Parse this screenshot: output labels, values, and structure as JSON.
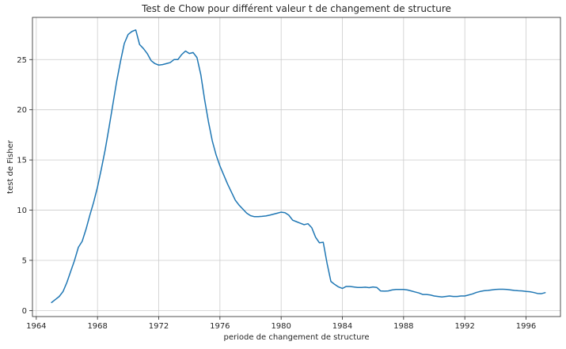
{
  "chart_data": {
    "type": "line",
    "title": "Test de Chow pour différent valeur t de changement de structure",
    "xlabel": "periode de changement de structure",
    "ylabel": "test de Fisher",
    "xlim": [
      1963.75,
      1998.25
    ],
    "ylim": [
      -0.6,
      29.2
    ],
    "grid": true,
    "x_ticks": [
      {
        "value": 1964,
        "label": "1964"
      },
      {
        "value": 1968,
        "label": "1968"
      },
      {
        "value": 1972,
        "label": "1972"
      },
      {
        "value": 1976,
        "label": "1976"
      },
      {
        "value": 1980,
        "label": "1980"
      },
      {
        "value": 1984,
        "label": "1984"
      },
      {
        "value": 1988,
        "label": "1988"
      },
      {
        "value": 1992,
        "label": "1992"
      },
      {
        "value": 1996,
        "label": "1996"
      }
    ],
    "y_ticks": [
      {
        "value": 0,
        "label": "0"
      },
      {
        "value": 5,
        "label": "5"
      },
      {
        "value": 10,
        "label": "10"
      },
      {
        "value": 15,
        "label": "15"
      },
      {
        "value": 20,
        "label": "20"
      },
      {
        "value": 25,
        "label": "25"
      }
    ],
    "series": [
      {
        "color": "#1f77b4",
        "points": [
          [
            1965.0,
            0.8
          ],
          [
            1965.25,
            1.1
          ],
          [
            1965.5,
            1.4
          ],
          [
            1965.75,
            1.9
          ],
          [
            1966.0,
            2.8
          ],
          [
            1966.25,
            3.9
          ],
          [
            1966.5,
            5.0
          ],
          [
            1966.75,
            6.3
          ],
          [
            1967.0,
            6.9
          ],
          [
            1967.25,
            8.1
          ],
          [
            1967.5,
            9.5
          ],
          [
            1967.75,
            10.8
          ],
          [
            1968.0,
            12.3
          ],
          [
            1968.25,
            14.1
          ],
          [
            1968.5,
            16.0
          ],
          [
            1968.75,
            18.2
          ],
          [
            1969.0,
            20.5
          ],
          [
            1969.25,
            22.8
          ],
          [
            1969.5,
            24.8
          ],
          [
            1969.75,
            26.6
          ],
          [
            1970.0,
            27.5
          ],
          [
            1970.25,
            27.8
          ],
          [
            1970.5,
            27.95
          ],
          [
            1970.75,
            26.5
          ],
          [
            1971.0,
            26.1
          ],
          [
            1971.25,
            25.6
          ],
          [
            1971.5,
            24.9
          ],
          [
            1971.75,
            24.6
          ],
          [
            1972.0,
            24.45
          ],
          [
            1972.25,
            24.5
          ],
          [
            1972.5,
            24.6
          ],
          [
            1972.75,
            24.7
          ],
          [
            1973.0,
            25.0
          ],
          [
            1973.25,
            25.0
          ],
          [
            1973.5,
            25.5
          ],
          [
            1973.75,
            25.85
          ],
          [
            1974.0,
            25.6
          ],
          [
            1974.25,
            25.7
          ],
          [
            1974.5,
            25.2
          ],
          [
            1974.75,
            23.5
          ],
          [
            1975.0,
            21.0
          ],
          [
            1975.25,
            18.8
          ],
          [
            1975.5,
            16.9
          ],
          [
            1975.75,
            15.5
          ],
          [
            1976.0,
            14.4
          ],
          [
            1976.25,
            13.5
          ],
          [
            1976.5,
            12.6
          ],
          [
            1976.75,
            11.8
          ],
          [
            1977.0,
            11.0
          ],
          [
            1977.25,
            10.5
          ],
          [
            1977.5,
            10.1
          ],
          [
            1977.75,
            9.7
          ],
          [
            1978.0,
            9.45
          ],
          [
            1978.25,
            9.35
          ],
          [
            1978.5,
            9.35
          ],
          [
            1978.75,
            9.38
          ],
          [
            1979.0,
            9.42
          ],
          [
            1979.25,
            9.5
          ],
          [
            1979.5,
            9.6
          ],
          [
            1979.75,
            9.7
          ],
          [
            1980.0,
            9.8
          ],
          [
            1980.25,
            9.75
          ],
          [
            1980.5,
            9.5
          ],
          [
            1980.75,
            9.0
          ],
          [
            1981.0,
            8.85
          ],
          [
            1981.25,
            8.7
          ],
          [
            1981.5,
            8.55
          ],
          [
            1981.75,
            8.65
          ],
          [
            1982.0,
            8.25
          ],
          [
            1982.25,
            7.3
          ],
          [
            1982.5,
            6.75
          ],
          [
            1982.75,
            6.8
          ],
          [
            1983.0,
            4.7
          ],
          [
            1983.25,
            2.9
          ],
          [
            1983.5,
            2.6
          ],
          [
            1983.75,
            2.35
          ],
          [
            1984.0,
            2.2
          ],
          [
            1984.25,
            2.4
          ],
          [
            1984.5,
            2.4
          ],
          [
            1984.75,
            2.35
          ],
          [
            1985.0,
            2.3
          ],
          [
            1985.25,
            2.3
          ],
          [
            1985.5,
            2.33
          ],
          [
            1985.75,
            2.28
          ],
          [
            1986.0,
            2.35
          ],
          [
            1986.25,
            2.3
          ],
          [
            1986.5,
            1.95
          ],
          [
            1986.75,
            1.93
          ],
          [
            1987.0,
            1.95
          ],
          [
            1987.25,
            2.05
          ],
          [
            1987.5,
            2.1
          ],
          [
            1987.75,
            2.1
          ],
          [
            1988.0,
            2.1
          ],
          [
            1988.25,
            2.05
          ],
          [
            1988.5,
            1.95
          ],
          [
            1988.75,
            1.85
          ],
          [
            1989.0,
            1.75
          ],
          [
            1989.25,
            1.6
          ],
          [
            1989.5,
            1.6
          ],
          [
            1989.75,
            1.55
          ],
          [
            1990.0,
            1.45
          ],
          [
            1990.25,
            1.4
          ],
          [
            1990.5,
            1.35
          ],
          [
            1990.75,
            1.4
          ],
          [
            1991.0,
            1.45
          ],
          [
            1991.25,
            1.4
          ],
          [
            1991.5,
            1.4
          ],
          [
            1991.75,
            1.45
          ],
          [
            1992.0,
            1.45
          ],
          [
            1992.25,
            1.55
          ],
          [
            1992.5,
            1.65
          ],
          [
            1992.75,
            1.8
          ],
          [
            1993.0,
            1.9
          ],
          [
            1993.25,
            1.97
          ],
          [
            1993.5,
            2.0
          ],
          [
            1993.75,
            2.05
          ],
          [
            1994.0,
            2.1
          ],
          [
            1994.25,
            2.12
          ],
          [
            1994.5,
            2.12
          ],
          [
            1994.75,
            2.1
          ],
          [
            1995.0,
            2.05
          ],
          [
            1995.25,
            2.0
          ],
          [
            1995.5,
            1.97
          ],
          [
            1995.75,
            1.95
          ],
          [
            1996.0,
            1.9
          ],
          [
            1996.25,
            1.87
          ],
          [
            1996.5,
            1.8
          ],
          [
            1996.75,
            1.7
          ],
          [
            1997.0,
            1.68
          ],
          [
            1997.25,
            1.78
          ]
        ]
      }
    ]
  }
}
